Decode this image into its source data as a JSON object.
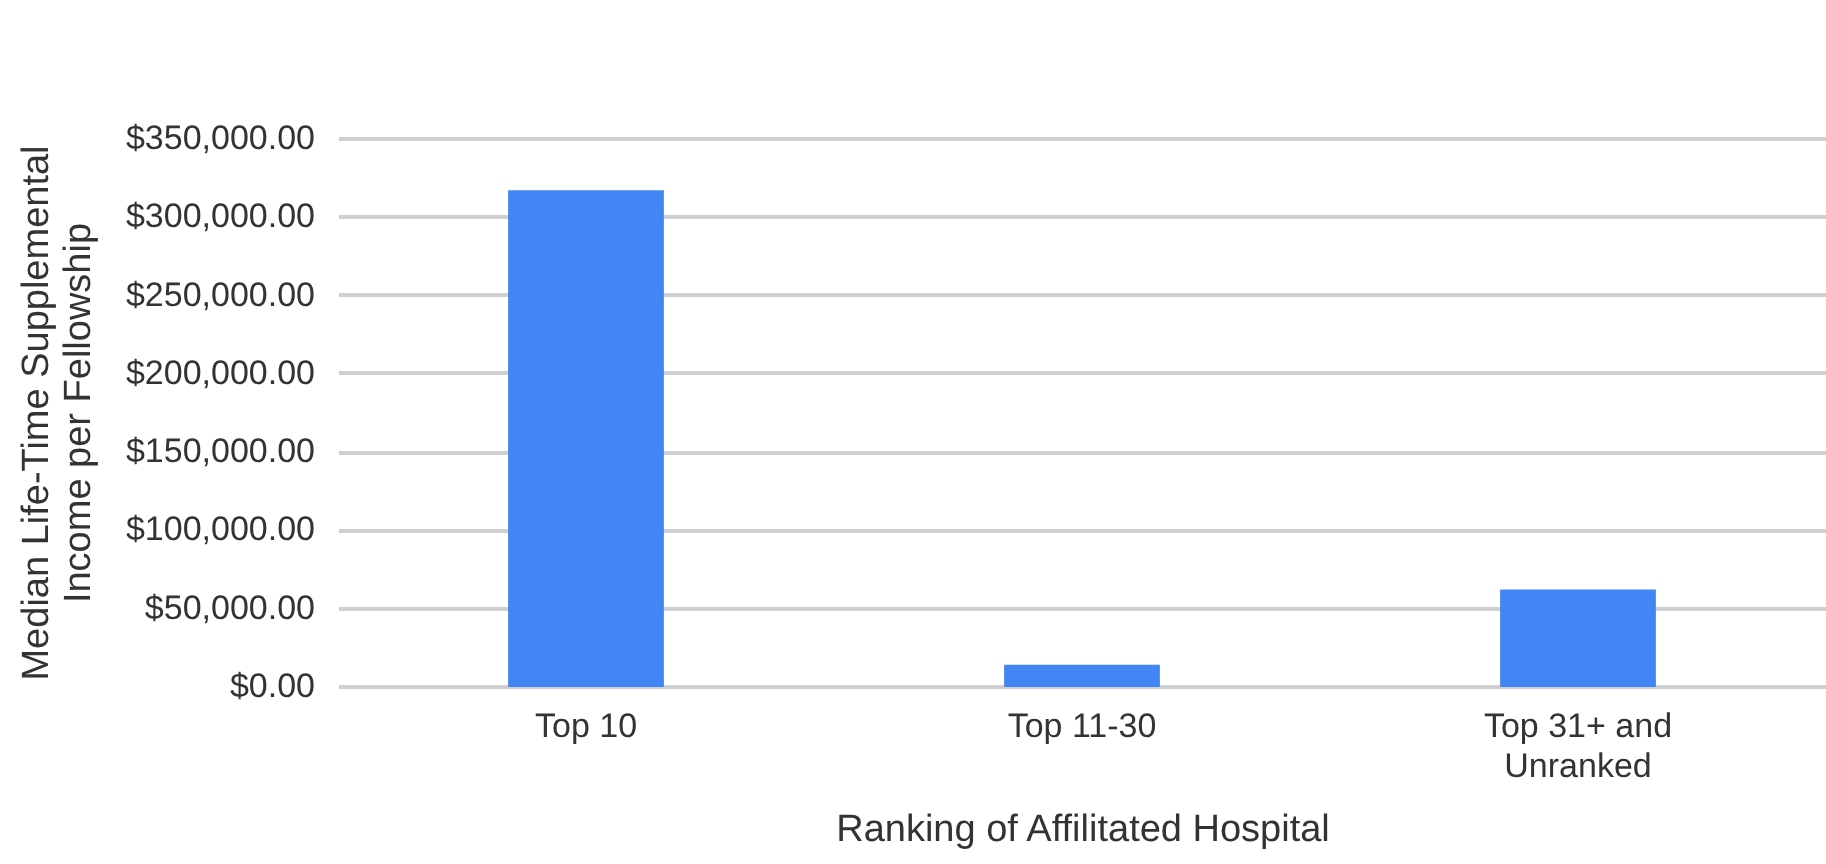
{
  "chart_data": {
    "type": "bar",
    "xlabel": "Ranking of Affilitated Hospital",
    "ylabel": "Median Life-Time Supplemental Income per Fellowship",
    "categories": [
      "Top 10",
      "Top 11-30",
      "Top 31+ and Unranked"
    ],
    "values": [
      316000,
      13000,
      61000
    ],
    "color": "#4285f4",
    "ylim": [
      0,
      350000
    ],
    "yticks": [
      {
        "value": 0,
        "label": "$0.00"
      },
      {
        "value": 50000,
        "label": "$50,000.00"
      },
      {
        "value": 100000,
        "label": "$100,000.00"
      },
      {
        "value": 150000,
        "label": "$150,000.00"
      },
      {
        "value": 200000,
        "label": "$200,000.00"
      },
      {
        "value": 250000,
        "label": "$250,000.00"
      },
      {
        "value": 300000,
        "label": "$300,000.00"
      },
      {
        "value": 350000,
        "label": "$350,000.00"
      }
    ],
    "grid": "y"
  }
}
